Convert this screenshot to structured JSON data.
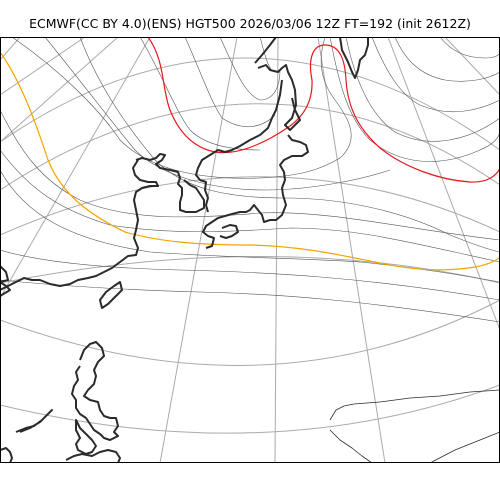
{
  "title": "ECMWF(CC BY 4.0)(ENS) HGT500 2026/03/06 12Z FT=192 (init 2612Z)",
  "colors": {
    "background": "#ffffff",
    "graticule": "#aaaaaa",
    "contour": "#555555",
    "highlight_contour_red": "#e8161b",
    "highlight_contour_orange": "#f5a300",
    "coastline": "#2b2b2b",
    "frame": "#000000"
  }
}
